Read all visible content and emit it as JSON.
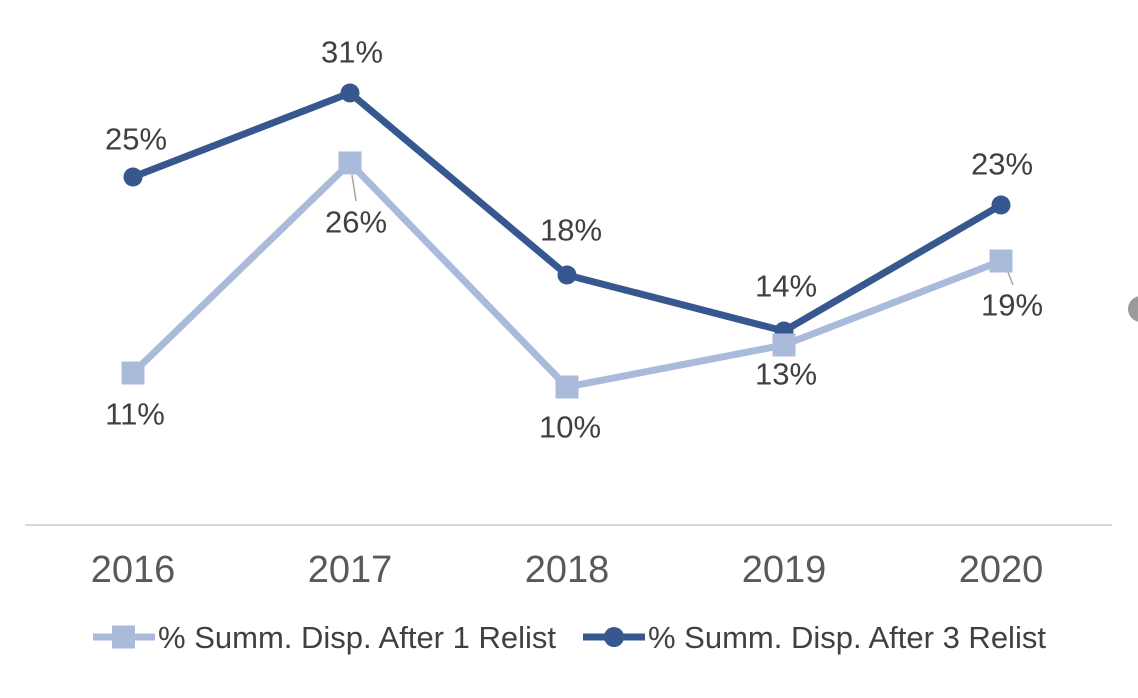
{
  "chart_data": {
    "type": "line",
    "title": "",
    "xlabel": "",
    "ylabel": "",
    "categories": [
      "2016",
      "2017",
      "2018",
      "2019",
      "2020"
    ],
    "series": [
      {
        "name": "% Summ. Disp. After 1 Relist",
        "marker": "square",
        "color": "#A9BADB",
        "values": [
          11,
          26,
          10,
          13,
          19
        ],
        "labels": [
          "11%",
          "26%",
          "10%",
          "13%",
          "19%"
        ]
      },
      {
        "name": "% Summ. Disp. After 3 Relist",
        "marker": "circle",
        "color": "#36588E",
        "values": [
          25,
          31,
          18,
          14,
          23
        ],
        "labels": [
          "25%",
          "31%",
          "18%",
          "14%",
          "23%"
        ]
      }
    ],
    "ylim": [
      0,
      35
    ],
    "grid": false,
    "y_axis_visible": false,
    "data_labels": true,
    "legend_position": "bottom"
  },
  "colors": {
    "axis_line": "#D9D9D9",
    "data_label_text": "#404040",
    "axis_label_text": "#595959",
    "legend_text": "#404040",
    "leader_line": "#A6A6A6",
    "edge_circle_gray": "#9B9B9B"
  }
}
